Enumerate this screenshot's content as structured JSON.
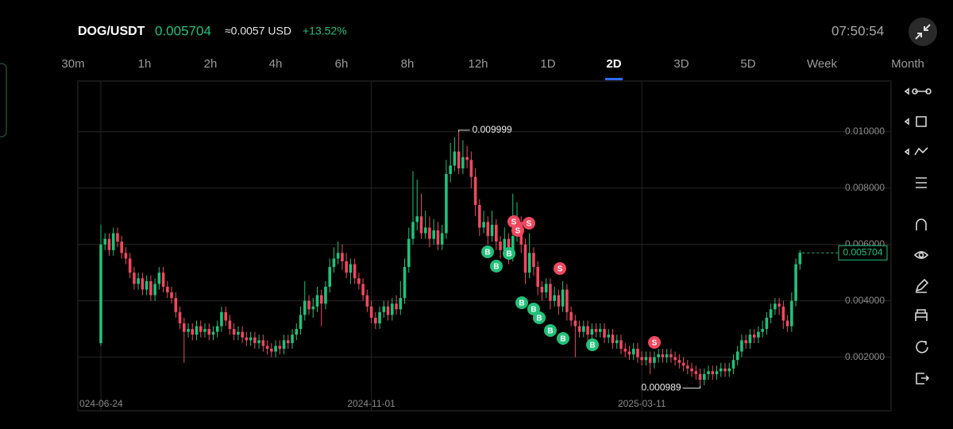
{
  "header": {
    "pair": "DOG/USDT",
    "price": 0.005704,
    "approx": "≈0.0057 USD",
    "change": "+13.52%",
    "time": "07:50:54"
  },
  "timeframes": {
    "items": [
      "30m",
      "1h",
      "2h",
      "4h",
      "6h",
      "8h",
      "12h",
      "1D",
      "2D",
      "3D",
      "5D",
      "Week",
      "Month"
    ],
    "active": "2D"
  },
  "chart_data": {
    "type": "candlestick",
    "up_color": "#22c07a",
    "down_color": "#f0485e",
    "grid": true,
    "ylim": [
      0.0001,
      0.0118
    ],
    "yticks": [
      {
        "value": 0.002,
        "label": "0.002000"
      },
      {
        "value": 0.004,
        "label": "0.004000"
      },
      {
        "value": 0.006,
        "label": "0.006000"
      },
      {
        "value": 0.008,
        "label": "0.008000"
      },
      {
        "value": 0.01,
        "label": "0.010000"
      }
    ],
    "xtick_labels": [
      "024-06-24",
      "2024-11-01",
      "2025-03-11"
    ],
    "open": [
      0.0025,
      0.006,
      0.0062,
      0.0058,
      0.0064,
      0.0061,
      0.0057,
      0.0055,
      0.005,
      0.0046,
      0.0048,
      0.0044,
      0.0047,
      0.0042,
      0.0046,
      0.005,
      0.0045,
      0.0043,
      0.0041,
      0.0036,
      0.0032,
      0.0029,
      0.003,
      0.0028,
      0.0031,
      0.0029,
      0.003,
      0.0028,
      0.0029,
      0.0031,
      0.0036,
      0.0033,
      0.003,
      0.0028,
      0.0029,
      0.0027,
      0.0026,
      0.0027,
      0.0025,
      0.0026,
      0.0024,
      0.0023,
      0.0022,
      0.0024,
      0.0023,
      0.0026,
      0.0025,
      0.0028,
      0.003,
      0.0035,
      0.004,
      0.0037,
      0.0038,
      0.0042,
      0.0039,
      0.0045,
      0.0052,
      0.0055,
      0.0057,
      0.0054,
      0.005,
      0.0053,
      0.0048,
      0.0046,
      0.0042,
      0.0038,
      0.0034,
      0.0032,
      0.0036,
      0.0038,
      0.0035,
      0.0039,
      0.0037,
      0.0041,
      0.0052,
      0.0062,
      0.0068,
      0.007,
      0.0064,
      0.0066,
      0.0062,
      0.0065,
      0.006,
      0.0064,
      0.0085,
      0.0088,
      0.0093,
      0.0087,
      0.0091,
      0.009,
      0.0084,
      0.0074,
      0.0066,
      0.0068,
      0.0063,
      0.0067,
      0.0061,
      0.0058,
      0.0062,
      0.0056,
      0.0063,
      0.0068,
      0.006,
      0.005,
      0.0057,
      0.0052,
      0.0045,
      0.0043,
      0.0046,
      0.004,
      0.0042,
      0.0038,
      0.0044,
      0.0036,
      0.0033,
      0.0031,
      0.0029,
      0.0031,
      0.0028,
      0.003,
      0.0029,
      0.003,
      0.0027,
      0.0028,
      0.0025,
      0.0026,
      0.0023,
      0.0022,
      0.0021,
      0.0023,
      0.002,
      0.0019,
      0.002,
      0.0018,
      0.002,
      0.0021,
      0.002,
      0.0021,
      0.002,
      0.0019,
      0.0018,
      0.0017,
      0.0016,
      0.0015,
      0.0014,
      0.0012,
      0.0014,
      0.0015,
      0.0014,
      0.0015,
      0.0016,
      0.0015,
      0.0016,
      0.0019,
      0.0022,
      0.0026,
      0.0025,
      0.0028,
      0.0027,
      0.0029,
      0.003,
      0.0034,
      0.0037,
      0.0039,
      0.0038,
      0.0033,
      0.0031,
      0.004,
      0.0053
    ],
    "high": [
      0.0067,
      0.0064,
      0.0064,
      0.0066,
      0.0066,
      0.0063,
      0.0059,
      0.0057,
      0.0052,
      0.005,
      0.005,
      0.0049,
      0.0049,
      0.0048,
      0.0052,
      0.0052,
      0.0047,
      0.0045,
      0.0043,
      0.0038,
      0.0034,
      0.0032,
      0.0032,
      0.0033,
      0.0033,
      0.0032,
      0.0032,
      0.0031,
      0.0033,
      0.0038,
      0.0038,
      0.0035,
      0.0032,
      0.0031,
      0.0031,
      0.0029,
      0.0029,
      0.0029,
      0.0028,
      0.0028,
      0.0026,
      0.0025,
      0.0026,
      0.0026,
      0.0028,
      0.0028,
      0.003,
      0.0032,
      0.0038,
      0.0047,
      0.0042,
      0.0041,
      0.0045,
      0.0044,
      0.0047,
      0.0055,
      0.0059,
      0.0061,
      0.006,
      0.0057,
      0.0055,
      0.0055,
      0.005,
      0.0048,
      0.0044,
      0.004,
      0.0036,
      0.0038,
      0.004,
      0.004,
      0.0041,
      0.0042,
      0.0047,
      0.0055,
      0.0066,
      0.0086,
      0.0083,
      0.0078,
      0.0072,
      0.007,
      0.0069,
      0.0068,
      0.0067,
      0.009,
      0.0096,
      0.0098,
      0.009999,
      0.0097,
      0.0095,
      0.0093,
      0.0087,
      0.0076,
      0.0072,
      0.007,
      0.0072,
      0.0069,
      0.0063,
      0.0066,
      0.0064,
      0.0078,
      0.0075,
      0.007,
      0.0062,
      0.0064,
      0.0059,
      0.0054,
      0.0047,
      0.0048,
      0.0048,
      0.0045,
      0.0044,
      0.0047,
      0.0046,
      0.0038,
      0.0035,
      0.0033,
      0.0033,
      0.0033,
      0.0032,
      0.0032,
      0.0032,
      0.0032,
      0.003,
      0.003,
      0.0028,
      0.0028,
      0.0025,
      0.0024,
      0.0025,
      0.0025,
      0.0022,
      0.0022,
      0.0022,
      0.0022,
      0.0023,
      0.0023,
      0.0023,
      0.0023,
      0.0022,
      0.0021,
      0.002,
      0.0019,
      0.0018,
      0.0017,
      0.0016,
      0.0016,
      0.0017,
      0.0017,
      0.0017,
      0.0018,
      0.0018,
      0.0018,
      0.0021,
      0.0024,
      0.0028,
      0.0028,
      0.003,
      0.003,
      0.0031,
      0.0033,
      0.0036,
      0.0039,
      0.0041,
      0.0041,
      0.004,
      0.0035,
      0.0043,
      0.0055,
      0.0058
    ],
    "low": [
      0.0024,
      0.0058,
      0.0056,
      0.0056,
      0.0059,
      0.0055,
      0.0053,
      0.0048,
      0.0044,
      0.0044,
      0.0042,
      0.0042,
      0.004,
      0.004,
      0.0044,
      0.0043,
      0.0041,
      0.0039,
      0.0034,
      0.003,
      0.0018,
      0.0027,
      0.0026,
      0.0026,
      0.0027,
      0.0027,
      0.0026,
      0.0026,
      0.0027,
      0.0029,
      0.0031,
      0.0028,
      0.0026,
      0.0026,
      0.0025,
      0.0024,
      0.0024,
      0.0023,
      0.0023,
      0.0022,
      0.0021,
      0.002,
      0.002,
      0.0021,
      0.0021,
      0.0023,
      0.0023,
      0.0026,
      0.0028,
      0.0033,
      0.0035,
      0.0034,
      0.0036,
      0.0031,
      0.0037,
      0.0043,
      0.005,
      0.0053,
      0.0051,
      0.0048,
      0.0046,
      0.0046,
      0.0044,
      0.004,
      0.0036,
      0.0032,
      0.003,
      0.003,
      0.0034,
      0.0033,
      0.0033,
      0.0035,
      0.0035,
      0.0039,
      0.005,
      0.006,
      0.0065,
      0.0062,
      0.0062,
      0.0059,
      0.006,
      0.0058,
      0.0058,
      0.0062,
      0.0082,
      0.0086,
      0.0085,
      0.0085,
      0.0087,
      0.008,
      0.007,
      0.0063,
      0.0064,
      0.006,
      0.0061,
      0.0058,
      0.0055,
      0.0056,
      0.0053,
      0.0054,
      0.0061,
      0.0057,
      0.0046,
      0.0048,
      0.0049,
      0.0042,
      0.004,
      0.0041,
      0.0037,
      0.0038,
      0.0035,
      0.0036,
      0.0033,
      0.0031,
      0.002,
      0.0027,
      0.0027,
      0.0026,
      0.0026,
      0.0027,
      0.0027,
      0.0025,
      0.0025,
      0.0023,
      0.0023,
      0.0021,
      0.002,
      0.0019,
      0.0019,
      0.0018,
      0.0017,
      0.0017,
      0.0014,
      0.0016,
      0.0018,
      0.0018,
      0.0018,
      0.0018,
      0.0017,
      0.0016,
      0.0015,
      0.0014,
      0.0013,
      0.0012,
      0.000989,
      0.001,
      0.0012,
      0.0012,
      0.0012,
      0.0013,
      0.0013,
      0.0013,
      0.0014,
      0.0017,
      0.002,
      0.0023,
      0.0023,
      0.0025,
      0.0025,
      0.0027,
      0.0028,
      0.0032,
      0.0035,
      0.0035,
      0.003,
      0.0029,
      0.0029,
      0.0038,
      0.0051
    ],
    "close": [
      0.006,
      0.0062,
      0.0058,
      0.0064,
      0.0061,
      0.0057,
      0.0055,
      0.005,
      0.0046,
      0.0048,
      0.0044,
      0.0047,
      0.0042,
      0.0046,
      0.005,
      0.0045,
      0.0043,
      0.0041,
      0.0036,
      0.0032,
      0.0029,
      0.003,
      0.0028,
      0.0031,
      0.0029,
      0.003,
      0.0028,
      0.0029,
      0.0031,
      0.0036,
      0.0033,
      0.003,
      0.0028,
      0.0029,
      0.0027,
      0.0026,
      0.0027,
      0.0025,
      0.0026,
      0.0024,
      0.0023,
      0.0022,
      0.0024,
      0.0023,
      0.0026,
      0.0025,
      0.0028,
      0.003,
      0.0035,
      0.004,
      0.0037,
      0.0038,
      0.0042,
      0.0039,
      0.0045,
      0.0052,
      0.0055,
      0.0057,
      0.0054,
      0.005,
      0.0053,
      0.0048,
      0.0046,
      0.0042,
      0.0038,
      0.0034,
      0.0032,
      0.0036,
      0.0038,
      0.0035,
      0.0039,
      0.0037,
      0.0041,
      0.0052,
      0.0062,
      0.0068,
      0.007,
      0.0064,
      0.0066,
      0.0062,
      0.0065,
      0.006,
      0.0064,
      0.0085,
      0.0088,
      0.0093,
      0.0087,
      0.0091,
      0.009,
      0.0084,
      0.0074,
      0.0066,
      0.0068,
      0.0063,
      0.0067,
      0.0061,
      0.0058,
      0.0062,
      0.0056,
      0.0063,
      0.0068,
      0.006,
      0.005,
      0.0057,
      0.0052,
      0.0045,
      0.0043,
      0.0046,
      0.004,
      0.0042,
      0.0038,
      0.0044,
      0.0036,
      0.0033,
      0.0031,
      0.0029,
      0.0031,
      0.0028,
      0.003,
      0.0029,
      0.003,
      0.0027,
      0.0028,
      0.0025,
      0.0026,
      0.0023,
      0.0022,
      0.0021,
      0.0023,
      0.002,
      0.0019,
      0.002,
      0.0018,
      0.002,
      0.0021,
      0.002,
      0.0021,
      0.002,
      0.0019,
      0.0018,
      0.0017,
      0.0016,
      0.0015,
      0.0014,
      0.0012,
      0.0014,
      0.0015,
      0.0014,
      0.0015,
      0.0016,
      0.0015,
      0.0016,
      0.0019,
      0.0022,
      0.0026,
      0.0025,
      0.0028,
      0.0027,
      0.0029,
      0.003,
      0.0034,
      0.0037,
      0.0039,
      0.0038,
      0.0033,
      0.0031,
      0.004,
      0.0053,
      0.005704
    ],
    "markers": [
      {
        "label": "S",
        "color": "#f0485e"
      },
      {
        "label": "S",
        "color": "#f0485e"
      },
      {
        "label": "S",
        "color": "#f0485e"
      },
      {
        "label": "B",
        "color": "#22c07a"
      },
      {
        "label": "B",
        "color": "#22c07a"
      },
      {
        "label": "B",
        "color": "#22c07a"
      },
      {
        "label": "S",
        "color": "#f0485e"
      },
      {
        "label": "B",
        "color": "#22c07a"
      },
      {
        "label": "B",
        "color": "#22c07a"
      },
      {
        "label": "B",
        "color": "#22c07a"
      },
      {
        "label": "B",
        "color": "#22c07a"
      },
      {
        "label": "B",
        "color": "#22c07a"
      },
      {
        "label": "B",
        "color": "#22c07a"
      },
      {
        "label": "S",
        "color": "#f0485e"
      }
    ]
  }
}
